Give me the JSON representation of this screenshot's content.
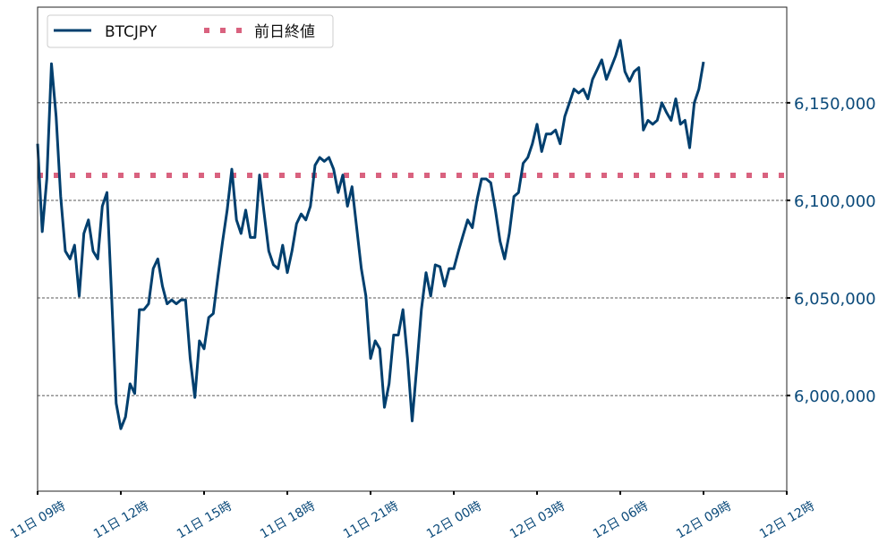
{
  "chart_data": {
    "type": "line",
    "title": "",
    "xlabel": "",
    "ylabel": "",
    "ylim": [
      5951000,
      6199000
    ],
    "y_axis_side": "right",
    "grid": "horizontal dashed",
    "legend_placement": "top-left",
    "x_ticks": [
      "11日 09時",
      "11日 12時",
      "11日 15時",
      "11日 18時",
      "11日 21時",
      "12日 00時",
      "12日 03時",
      "12日 06時",
      "12日 09時",
      "12日 12時"
    ],
    "y_ticks": [
      6000000,
      6050000,
      6100000,
      6150000
    ],
    "y_tick_labels": [
      "6,000,000",
      "6,050,000",
      "6,100,000",
      "6,150,000"
    ],
    "x_range": [
      "11日 09:00",
      "12日 12:00"
    ],
    "series": [
      {
        "name": "BTCJPY",
        "color": "#003f6e",
        "style": "solid",
        "x_start": "11日 09:00",
        "x_step_minutes": 10,
        "values": [
          6129000,
          6084000,
          6111000,
          6170000,
          6143000,
          6102000,
          6074000,
          6070000,
          6077000,
          6051000,
          6083000,
          6090000,
          6074000,
          6070000,
          6097000,
          6104000,
          6051000,
          5996000,
          5983000,
          5989000,
          6006000,
          6001000,
          6044000,
          6044000,
          6047000,
          6065000,
          6070000,
          6056000,
          6047000,
          6049000,
          6047000,
          6049000,
          6049000,
          6019000,
          5999000,
          6028000,
          6024000,
          6040000,
          6042000,
          6061000,
          6079000,
          6095000,
          6116000,
          6090000,
          6083000,
          6095000,
          6081000,
          6081000,
          6113000,
          6093000,
          6074000,
          6067000,
          6065000,
          6077000,
          6063000,
          6074000,
          6088000,
          6093000,
          6090000,
          6097000,
          6118000,
          6122000,
          6120000,
          6122000,
          6116000,
          6104000,
          6113000,
          6097000,
          6107000,
          6086000,
          6065000,
          6051000,
          6019000,
          6028000,
          6024000,
          5994000,
          6006000,
          6031000,
          6031000,
          6044000,
          6019000,
          5987000,
          6015000,
          6044000,
          6063000,
          6051000,
          6067000,
          6066000,
          6056000,
          6065000,
          6065000,
          6074000,
          6082000,
          6090000,
          6086000,
          6100000,
          6111000,
          6111000,
          6109000,
          6095000,
          6079000,
          6070000,
          6083000,
          6102000,
          6104000,
          6119000,
          6122000,
          6129000,
          6139000,
          6125000,
          6134000,
          6134000,
          6136000,
          6129000,
          6143000,
          6150000,
          6157000,
          6155000,
          6157000,
          6152000,
          6162000,
          6167000,
          6172000,
          6162000,
          6168000,
          6174000,
          6182000,
          6166000,
          6161000,
          6166000,
          6168000,
          6136000,
          6141000,
          6139000,
          6141000,
          6150000,
          6145000,
          6141000,
          6152000,
          6139000,
          6141000,
          6127000,
          6150000,
          6157000,
          6171000
        ]
      },
      {
        "name": "前日終値",
        "color": "#d9627f",
        "style": "dotted",
        "value": 6112800
      }
    ]
  }
}
